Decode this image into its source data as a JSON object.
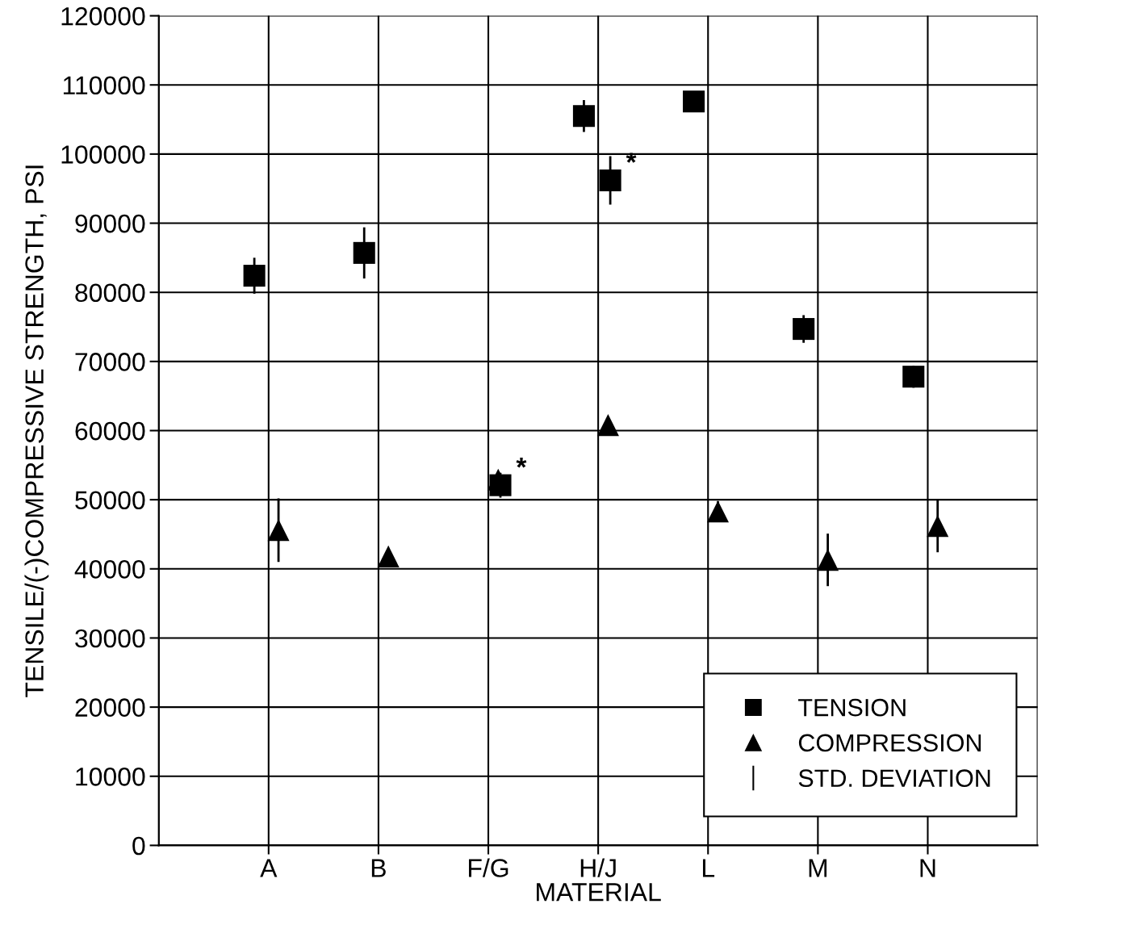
{
  "chart_data": {
    "type": "scatter",
    "xlabel": "MATERIAL",
    "ylabel": "TENSILE/(-)COMPRESSIVE STRENGTH, PSI",
    "categories": [
      "A",
      "B",
      "F/G",
      "H/J",
      "L",
      "M",
      "N"
    ],
    "series": [
      {
        "name": "TENSION",
        "marker": "square",
        "color": "#000000",
        "values": [
          82400,
          85700,
          null,
          105500,
          107600,
          74700,
          67800
        ],
        "errors": [
          2600,
          3700,
          null,
          2300,
          null,
          2000,
          1600
        ]
      },
      {
        "marker": "square",
        "color": "#000000",
        "values": [
          null,
          null,
          52100,
          96200,
          null,
          null,
          null
        ],
        "errors": [
          null,
          null,
          1800,
          3500,
          null,
          null,
          null
        ]
      },
      {
        "name": "COMPRESSION",
        "marker": "triangle",
        "color": "#000000",
        "values": [
          45600,
          41800,
          52900,
          60800,
          48300,
          41300,
          46200
        ],
        "errors": [
          4600,
          null,
          null,
          null,
          1500,
          3800,
          3800
        ]
      },
      {
        "name": "STD. DEVIATION",
        "marker": "none",
        "color": "#000000",
        "values": [
          null,
          null,
          null,
          null,
          null,
          null,
          null
        ]
      }
    ],
    "annotations": [
      {
        "text": "*",
        "x": "F/G",
        "y": 52100
      },
      {
        "text": "*",
        "x": "H/J",
        "y": 96200
      }
    ],
    "ylim": [
      0,
      120000
    ],
    "yticks": [
      0,
      10000,
      20000,
      30000,
      40000,
      50000,
      60000,
      70000,
      80000,
      90000,
      100000,
      110000,
      120000
    ],
    "grid": true,
    "legend": "bottom right"
  }
}
